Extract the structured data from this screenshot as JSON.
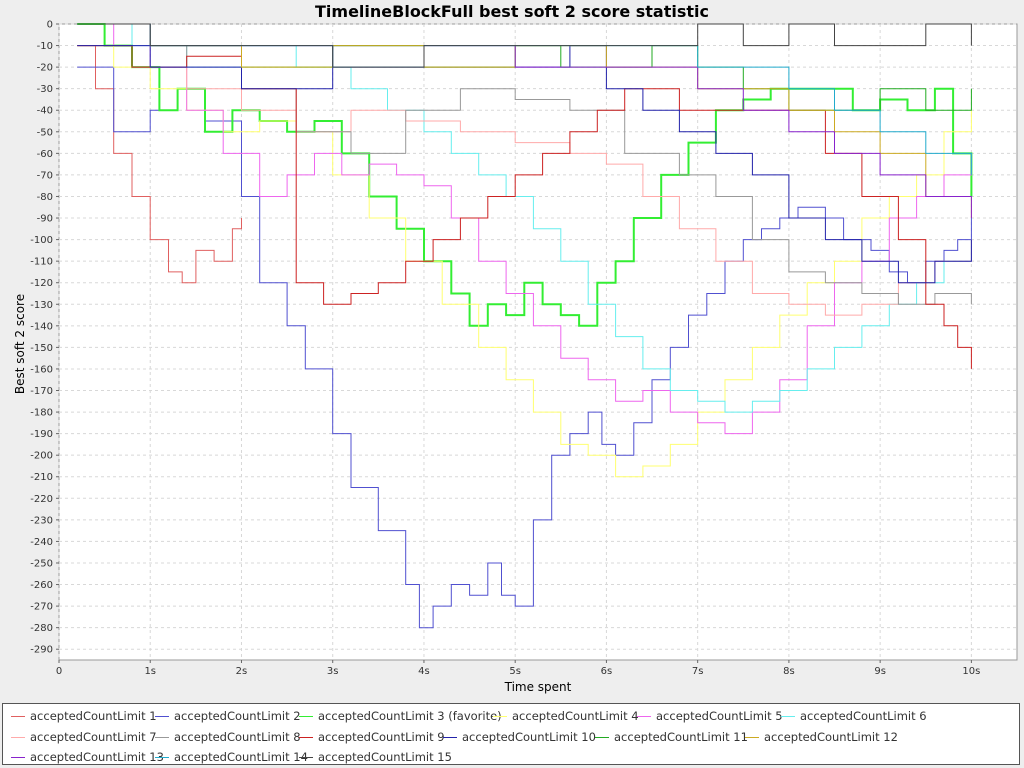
{
  "chart_data": {
    "type": "line",
    "title": "TimelineBlockFull best soft 2 score statistic",
    "xlabel": "Time spent",
    "ylabel": "Best soft 2 score",
    "xlim": [
      0,
      10.5
    ],
    "ylim": [
      -295,
      0
    ],
    "x_ticks": [
      {
        "v": 0,
        "label": "0"
      },
      {
        "v": 1,
        "label": "1s"
      },
      {
        "v": 2,
        "label": "2s"
      },
      {
        "v": 3,
        "label": "3s"
      },
      {
        "v": 4,
        "label": "4s"
      },
      {
        "v": 5,
        "label": "5s"
      },
      {
        "v": 6,
        "label": "6s"
      },
      {
        "v": 7,
        "label": "7s"
      },
      {
        "v": 8,
        "label": "8s"
      },
      {
        "v": 9,
        "label": "9s"
      },
      {
        "v": 10,
        "label": "10s"
      }
    ],
    "y_ticks": [
      0,
      -10,
      -20,
      -30,
      -40,
      -50,
      -60,
      -70,
      -80,
      -90,
      -100,
      -110,
      -120,
      -130,
      -140,
      -150,
      -160,
      -170,
      -180,
      -190,
      -200,
      -210,
      -220,
      -230,
      -240,
      -250,
      -260,
      -270,
      -280,
      -290
    ],
    "grid": true,
    "legend_position": "bottom",
    "series": [
      {
        "name": "acceptedCountLimit 1",
        "color": "#e06060",
        "x": [
          0.2,
          0.4,
          0.6,
          0.8,
          1.0,
          1.2,
          1.35,
          1.5,
          1.7,
          1.9,
          2.0
        ],
        "y": [
          -10,
          -30,
          -60,
          -80,
          -100,
          -115,
          -120,
          -105,
          -110,
          -95,
          -90
        ]
      },
      {
        "name": "acceptedCountLimit 2",
        "color": "#5050d0",
        "x": [
          0.2,
          0.6,
          1.0,
          1.3,
          1.6,
          2.0,
          2.2,
          2.5,
          2.7,
          3.0,
          3.2,
          3.5,
          3.8,
          3.95,
          4.1,
          4.3,
          4.5,
          4.7,
          4.85,
          5.0,
          5.2,
          5.4,
          5.6,
          5.8,
          5.95,
          6.1,
          6.3,
          6.5,
          6.7,
          6.9,
          7.1,
          7.3,
          7.5,
          7.7,
          7.9,
          8.1,
          8.4,
          8.6,
          8.9,
          9.1,
          9.3,
          9.5,
          9.7,
          9.85,
          10.0
        ],
        "y": [
          -20,
          -50,
          -40,
          -30,
          -45,
          -80,
          -120,
          -140,
          -160,
          -190,
          -215,
          -235,
          -260,
          -280,
          -270,
          -260,
          -265,
          -250,
          -265,
          -270,
          -230,
          -200,
          -190,
          -180,
          -195,
          -200,
          -185,
          -165,
          -150,
          -135,
          -125,
          -110,
          -100,
          -95,
          -90,
          -85,
          -90,
          -100,
          -105,
          -115,
          -120,
          -110,
          -105,
          -100,
          -90
        ]
      },
      {
        "name": "acceptedCountLimit 3 (favorite)",
        "color": "#33ee33",
        "x": [
          0.2,
          0.5,
          0.8,
          1.1,
          1.3,
          1.6,
          1.9,
          2.2,
          2.5,
          2.8,
          3.1,
          3.4,
          3.7,
          4.0,
          4.3,
          4.5,
          4.7,
          4.9,
          5.1,
          5.3,
          5.5,
          5.7,
          5.9,
          6.1,
          6.3,
          6.6,
          6.9,
          7.2,
          7.5,
          7.8,
          8.1,
          8.4,
          8.7,
          9.0,
          9.3,
          9.6,
          9.8,
          10.0
        ],
        "y": [
          0,
          -10,
          -20,
          -40,
          -30,
          -50,
          -40,
          -45,
          -50,
          -45,
          -60,
          -80,
          -95,
          -110,
          -125,
          -140,
          -130,
          -135,
          -120,
          -130,
          -135,
          -140,
          -120,
          -110,
          -90,
          -70,
          -55,
          -40,
          -35,
          -30,
          -30,
          -30,
          -40,
          -35,
          -40,
          -30,
          -60,
          -80
        ]
      },
      {
        "name": "acceptedCountLimit 4",
        "color": "#ffff70",
        "x": [
          0.2,
          0.6,
          1.0,
          1.4,
          1.8,
          2.2,
          2.6,
          3.0,
          3.4,
          3.8,
          4.2,
          4.6,
          4.9,
          5.2,
          5.5,
          5.8,
          6.1,
          6.4,
          6.7,
          7.0,
          7.3,
          7.6,
          7.9,
          8.2,
          8.5,
          8.8,
          9.1,
          9.4,
          9.7,
          10.0
        ],
        "y": [
          -10,
          -20,
          -30,
          -40,
          -50,
          -45,
          -50,
          -70,
          -90,
          -110,
          -130,
          -150,
          -165,
          -180,
          -195,
          -200,
          -210,
          -205,
          -195,
          -180,
          -165,
          -150,
          -135,
          -120,
          -110,
          -90,
          -80,
          -70,
          -50,
          -40
        ]
      },
      {
        "name": "acceptedCountLimit 5",
        "color": "#ee66ee",
        "x": [
          0.2,
          0.6,
          1.0,
          1.4,
          1.8,
          2.2,
          2.5,
          2.8,
          3.1,
          3.4,
          3.7,
          4.0,
          4.3,
          4.6,
          4.9,
          5.2,
          5.5,
          5.8,
          6.1,
          6.4,
          6.7,
          7.0,
          7.3,
          7.6,
          7.9,
          8.2,
          8.5,
          8.8,
          9.1,
          9.4,
          9.7,
          10.0
        ],
        "y": [
          0,
          -10,
          -20,
          -40,
          -60,
          -80,
          -70,
          -60,
          -70,
          -65,
          -70,
          -75,
          -90,
          -110,
          -125,
          -140,
          -155,
          -165,
          -175,
          -170,
          -180,
          -185,
          -190,
          -180,
          -165,
          -140,
          -120,
          -110,
          -90,
          -80,
          -70,
          -60
        ]
      },
      {
        "name": "acceptedCountLimit 6",
        "color": "#66eeee",
        "x": [
          0.2,
          0.8,
          1.4,
          2.0,
          2.6,
          3.2,
          3.6,
          4.0,
          4.3,
          4.6,
          4.9,
          5.2,
          5.5,
          5.8,
          6.1,
          6.4,
          6.7,
          7.0,
          7.3,
          7.6,
          7.9,
          8.2,
          8.5,
          8.8,
          9.1,
          9.4,
          9.7,
          10.0
        ],
        "y": [
          0,
          -10,
          -20,
          -10,
          -20,
          -30,
          -40,
          -50,
          -60,
          -70,
          -80,
          -95,
          -110,
          -130,
          -145,
          -160,
          -170,
          -175,
          -180,
          -175,
          -170,
          -160,
          -150,
          -140,
          -130,
          -120,
          -110,
          -100
        ]
      },
      {
        "name": "acceptedCountLimit 7",
        "color": "#ffaaaa",
        "x": [
          0.2,
          0.8,
          1.4,
          2.0,
          2.6,
          3.2,
          3.8,
          4.4,
          5.0,
          5.6,
          6.0,
          6.4,
          6.8,
          7.2,
          7.6,
          8.0,
          8.4,
          8.8,
          9.2,
          9.6,
          10.0
        ],
        "y": [
          -10,
          -20,
          -30,
          -40,
          -50,
          -40,
          -45,
          -50,
          -55,
          -60,
          -65,
          -80,
          -95,
          -110,
          -125,
          -130,
          -135,
          -130,
          -120,
          -110,
          -100
        ]
      },
      {
        "name": "acceptedCountLimit 8",
        "color": "#999999",
        "x": [
          0.2,
          0.8,
          1.4,
          2.0,
          2.6,
          3.2,
          3.8,
          4.4,
          5.0,
          5.6,
          6.2,
          6.8,
          7.2,
          7.6,
          8.0,
          8.4,
          8.8,
          9.2,
          9.6,
          10.0
        ],
        "y": [
          -10,
          -20,
          -10,
          -30,
          -50,
          -60,
          -40,
          -30,
          -35,
          -40,
          -60,
          -70,
          -80,
          -100,
          -115,
          -120,
          -125,
          -130,
          -125,
          -130
        ]
      },
      {
        "name": "acceptedCountLimit 9",
        "color": "#cc2222",
        "x": [
          0.2,
          0.8,
          1.4,
          2.0,
          2.6,
          2.9,
          3.2,
          3.5,
          3.8,
          4.1,
          4.4,
          4.7,
          5.0,
          5.3,
          5.6,
          5.9,
          6.2,
          6.5,
          6.8,
          7.2,
          7.6,
          8.0,
          8.4,
          8.8,
          9.2,
          9.5,
          9.7,
          9.85,
          10.0
        ],
        "y": [
          -10,
          -20,
          -15,
          -30,
          -120,
          -130,
          -125,
          -120,
          -110,
          -100,
          -90,
          -80,
          -70,
          -60,
          -50,
          -40,
          -30,
          -30,
          -40,
          -40,
          -40,
          -40,
          -60,
          -80,
          -100,
          -130,
          -140,
          -150,
          -160
        ]
      },
      {
        "name": "acceptedCountLimit 10",
        "color": "#2222aa",
        "x": [
          0.2,
          1.0,
          2.0,
          3.0,
          4.0,
          5.0,
          5.6,
          6.0,
          6.4,
          6.8,
          7.2,
          7.6,
          8.0,
          8.4,
          8.8,
          9.2,
          9.6,
          10.0
        ],
        "y": [
          -10,
          -20,
          -30,
          -10,
          -20,
          -20,
          -10,
          -30,
          -40,
          -50,
          -60,
          -70,
          -90,
          -100,
          -110,
          -120,
          -110,
          -100
        ]
      },
      {
        "name": "acceptedCountLimit 11",
        "color": "#22aa22",
        "x": [
          0.2,
          1.0,
          2.0,
          3.0,
          4.0,
          5.0,
          5.5,
          6.0,
          6.5,
          7.0,
          7.5,
          8.0,
          8.5,
          9.0,
          9.5,
          10.0
        ],
        "y": [
          0,
          -10,
          -20,
          -10,
          -20,
          -10,
          -20,
          -20,
          -10,
          -20,
          -30,
          -40,
          -40,
          -30,
          -40,
          -30
        ]
      },
      {
        "name": "acceptedCountLimit 12",
        "color": "#ccaa22",
        "x": [
          0.2,
          1.0,
          2.0,
          3.0,
          4.0,
          5.0,
          6.0,
          7.0,
          8.0,
          8.5,
          9.0,
          9.5,
          10.0
        ],
        "y": [
          0,
          -10,
          -20,
          -10,
          -20,
          -10,
          -20,
          -30,
          -40,
          -50,
          -60,
          -80,
          -90
        ]
      },
      {
        "name": "acceptedCountLimit 13",
        "color": "#8822cc",
        "x": [
          0.2,
          1.0,
          2.0,
          3.0,
          4.0,
          5.0,
          6.0,
          7.0,
          7.5,
          8.0,
          8.5,
          9.0,
          9.5,
          10.0
        ],
        "y": [
          0,
          -10,
          -10,
          -20,
          -10,
          -20,
          -20,
          -30,
          -40,
          -50,
          -60,
          -70,
          -80,
          -90
        ]
      },
      {
        "name": "acceptedCountLimit 14",
        "color": "#22aacc",
        "x": [
          0.2,
          1.0,
          2.0,
          3.0,
          4.0,
          5.0,
          6.0,
          7.0,
          8.0,
          8.5,
          9.0,
          9.5,
          10.0
        ],
        "y": [
          0,
          -10,
          -10,
          -20,
          -10,
          -10,
          -10,
          -20,
          -30,
          -40,
          -50,
          -60,
          -70
        ]
      },
      {
        "name": "acceptedCountLimit 15",
        "color": "#444444",
        "x": [
          0.2,
          1.0,
          2.0,
          3.0,
          4.0,
          5.0,
          6.0,
          7.0,
          7.5,
          8.0,
          8.5,
          9.0,
          9.5,
          10.0
        ],
        "y": [
          0,
          -10,
          -10,
          -20,
          -10,
          -10,
          -10,
          0,
          -10,
          0,
          -10,
          -10,
          0,
          -10
        ]
      }
    ]
  }
}
